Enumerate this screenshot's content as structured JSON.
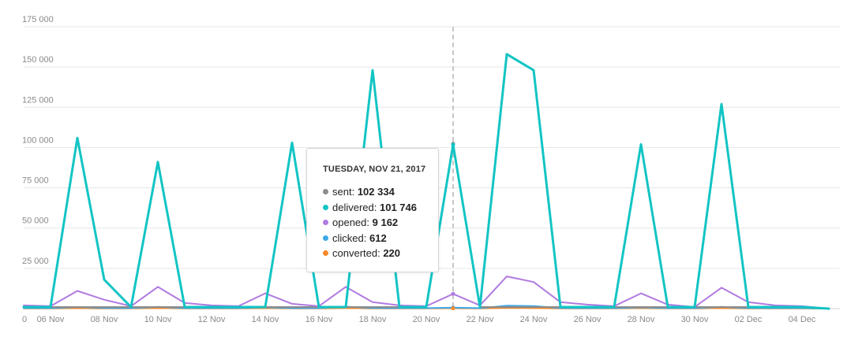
{
  "chart_data": {
    "type": "line",
    "x": [
      "05 Nov",
      "06 Nov",
      "07 Nov",
      "08 Nov",
      "09 Nov",
      "10 Nov",
      "11 Nov",
      "12 Nov",
      "13 Nov",
      "14 Nov",
      "15 Nov",
      "16 Nov",
      "17 Nov",
      "18 Nov",
      "19 Nov",
      "20 Nov",
      "21 Nov",
      "22 Nov",
      "23 Nov",
      "24 Nov",
      "25 Nov",
      "26 Nov",
      "27 Nov",
      "28 Nov",
      "29 Nov",
      "30 Nov",
      "01 Dec",
      "02 Dec",
      "03 Dec",
      "04 Dec",
      "05 Dec"
    ],
    "x_tick_labels": [
      "06 Nov",
      "08 Nov",
      "10 Nov",
      "12 Nov",
      "14 Nov",
      "16 Nov",
      "18 Nov",
      "20 Nov",
      "22 Nov",
      "24 Nov",
      "26 Nov",
      "28 Nov",
      "30 Nov",
      "02 Dec",
      "04 Dec"
    ],
    "x_origin_label": "0",
    "y_tick_labels": [
      "25 000",
      "50 000",
      "75 000",
      "100 000",
      "125 000",
      "150 000",
      "175 000"
    ],
    "y_ticks": [
      25000,
      50000,
      75000,
      100000,
      125000,
      150000,
      175000
    ],
    "ylim": [
      0,
      175000
    ],
    "grid": true,
    "title": "",
    "xlabel": "",
    "ylabel": "",
    "highlight_index": 16,
    "series": [
      {
        "name": "sent",
        "color": "#8c8c8c",
        "values": [
          1000,
          1000,
          1000,
          1000,
          1000,
          1000,
          1000,
          1000,
          1000,
          1000,
          1000,
          1000,
          1000,
          1000,
          1000,
          1000,
          102334,
          1000,
          1000,
          1000,
          1000,
          1000,
          1000,
          1000,
          1000,
          1000,
          1000,
          1000,
          1000,
          1000,
          0
        ]
      },
      {
        "name": "delivered",
        "color": "#13c4c4",
        "values": [
          1000,
          1000,
          106000,
          18000,
          1000,
          91000,
          1000,
          1000,
          1000,
          1000,
          103000,
          1000,
          1000,
          148000,
          1000,
          1000,
          101746,
          1000,
          158000,
          148000,
          1000,
          1000,
          1000,
          102000,
          1000,
          1000,
          127000,
          1000,
          1000,
          1000,
          0
        ]
      },
      {
        "name": "opened",
        "color": "#b07ae0",
        "values": [
          2000,
          1500,
          11000,
          5500,
          1500,
          13500,
          3500,
          2000,
          1500,
          9500,
          3000,
          1500,
          13500,
          4000,
          2000,
          1500,
          9162,
          2000,
          20000,
          16500,
          4000,
          2500,
          1500,
          9500,
          2500,
          1000,
          13000,
          4000,
          2000,
          1500,
          0
        ]
      },
      {
        "name": "clicked",
        "color": "#3fa9e8",
        "values": [
          300,
          300,
          1000,
          400,
          300,
          1100,
          300,
          300,
          300,
          800,
          300,
          300,
          1200,
          400,
          300,
          300,
          612,
          300,
          1800,
          1600,
          400,
          300,
          300,
          800,
          300,
          300,
          1100,
          400,
          300,
          300,
          0
        ]
      },
      {
        "name": "converted",
        "color": "#f5892a",
        "values": [
          100,
          100,
          300,
          100,
          100,
          400,
          100,
          100,
          100,
          300,
          100,
          100,
          400,
          100,
          100,
          100,
          220,
          100,
          500,
          400,
          100,
          100,
          100,
          300,
          100,
          100,
          400,
          100,
          100,
          100,
          0
        ]
      }
    ]
  },
  "tooltip": {
    "title": "TUESDAY, NOV 21, 2017",
    "rows": [
      {
        "label": "sent:",
        "value": "102 334",
        "color": "#8c8c8c"
      },
      {
        "label": "delivered:",
        "value": "101 746",
        "color": "#13c4c4"
      },
      {
        "label": "opened:",
        "value": "9 162",
        "color": "#b07ae0"
      },
      {
        "label": "clicked:",
        "value": "612",
        "color": "#3fa9e8"
      },
      {
        "label": "converted:",
        "value": "220",
        "color": "#f5892a"
      }
    ]
  }
}
